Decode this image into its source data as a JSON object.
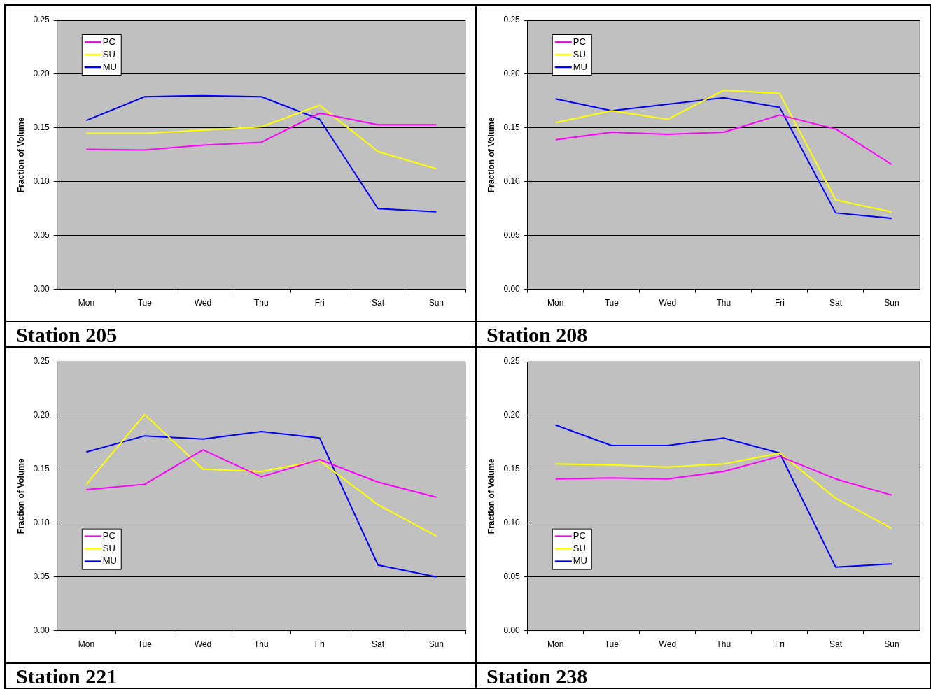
{
  "chart_data": [
    {
      "type": "line",
      "title": "Station 205",
      "ylabel": "Fraction of Volume",
      "categories": [
        "Mon",
        "Tue",
        "Wed",
        "Thu",
        "Fri",
        "Sat",
        "Sun"
      ],
      "ylim": [
        0,
        0.25
      ],
      "yticks": [
        {
          "value": 0,
          "label": "0.00"
        },
        {
          "value": 0.05,
          "label": "0.05"
        },
        {
          "value": 0.1,
          "label": "0.10"
        },
        {
          "value": 0.15,
          "label": "0.15"
        },
        {
          "value": 0.2,
          "label": "0.20"
        },
        {
          "value": 0.25,
          "label": "0.25"
        }
      ],
      "grid": "y",
      "legend": "top left",
      "marker": "none",
      "line_style": "solid",
      "series": [
        {
          "name": "PC",
          "color": "#ff00ff",
          "values": [
            0.13,
            0.1295,
            0.134,
            0.1366,
            0.1637,
            0.153,
            0.153
          ]
        },
        {
          "name": "SU",
          "color": "#ffff00",
          "values": [
            0.145,
            0.145,
            0.148,
            0.151,
            0.171,
            0.128,
            0.112
          ]
        },
        {
          "name": "MU",
          "color": "#0000ff",
          "values": [
            0.157,
            0.179,
            0.18,
            0.179,
            0.158,
            0.075,
            0.072
          ]
        }
      ]
    },
    {
      "type": "line",
      "title": "Station 208",
      "ylabel": "Fraction of Volume",
      "categories": [
        "Mon",
        "Tue",
        "Wed",
        "Thu",
        "Fri",
        "Sat",
        "Sun"
      ],
      "ylim": [
        0,
        0.25
      ],
      "yticks": [
        {
          "value": 0,
          "label": "0.00"
        },
        {
          "value": 0.05,
          "label": "0.05"
        },
        {
          "value": 0.1,
          "label": "0.10"
        },
        {
          "value": 0.15,
          "label": "0.15"
        },
        {
          "value": 0.2,
          "label": "0.20"
        },
        {
          "value": 0.25,
          "label": "0.25"
        }
      ],
      "grid": "y",
      "legend": "top left",
      "marker": "none",
      "line_style": "solid",
      "series": [
        {
          "name": "PC",
          "color": "#ff00ff",
          "values": [
            0.139,
            0.146,
            0.144,
            0.146,
            0.162,
            0.149,
            0.116
          ]
        },
        {
          "name": "SU",
          "color": "#ffff00",
          "values": [
            0.155,
            0.166,
            0.158,
            0.185,
            0.182,
            0.083,
            0.072
          ]
        },
        {
          "name": "MU",
          "color": "#0000ff",
          "values": [
            0.177,
            0.166,
            0.172,
            0.178,
            0.169,
            0.071,
            0.066
          ]
        }
      ]
    },
    {
      "type": "line",
      "title": "Station 221",
      "ylabel": "Fraction of Volume",
      "categories": [
        "Mon",
        "Tue",
        "Wed",
        "Thu",
        "Fri",
        "Sat",
        "Sun"
      ],
      "ylim": [
        0,
        0.25
      ],
      "yticks": [
        {
          "value": 0,
          "label": "0.00"
        },
        {
          "value": 0.05,
          "label": "0.05"
        },
        {
          "value": 0.1,
          "label": "0.10"
        },
        {
          "value": 0.15,
          "label": "0.15"
        },
        {
          "value": 0.2,
          "label": "0.20"
        },
        {
          "value": 0.25,
          "label": "0.25"
        }
      ],
      "grid": "y",
      "legend": "bottom left",
      "marker": "none",
      "line_style": "solid",
      "series": [
        {
          "name": "PC",
          "color": "#ff00ff",
          "values": [
            0.131,
            0.136,
            0.168,
            0.143,
            0.159,
            0.138,
            0.124
          ]
        },
        {
          "name": "SU",
          "color": "#ffff00",
          "values": [
            0.136,
            0.201,
            0.15,
            0.148,
            0.158,
            0.117,
            0.088
          ]
        },
        {
          "name": "MU",
          "color": "#0000ff",
          "values": [
            0.166,
            0.181,
            0.178,
            0.185,
            0.179,
            0.061,
            0.05
          ]
        }
      ]
    },
    {
      "type": "line",
      "title": "Station 238",
      "ylabel": "Fraction of Volume",
      "categories": [
        "Mon",
        "Tue",
        "Wed",
        "Thu",
        "Fri",
        "Sat",
        "Sun"
      ],
      "ylim": [
        0,
        0.25
      ],
      "yticks": [
        {
          "value": 0,
          "label": "0.00"
        },
        {
          "value": 0.05,
          "label": "0.05"
        },
        {
          "value": 0.1,
          "label": "0.10"
        },
        {
          "value": 0.15,
          "label": "0.15"
        },
        {
          "value": 0.2,
          "label": "0.20"
        },
        {
          "value": 0.25,
          "label": "0.25"
        }
      ],
      "grid": "y",
      "legend": "bottom left",
      "marker": "none",
      "line_style": "solid",
      "series": [
        {
          "name": "PC",
          "color": "#ff00ff",
          "values": [
            0.141,
            0.142,
            0.141,
            0.148,
            0.162,
            0.141,
            0.126
          ]
        },
        {
          "name": "SU",
          "color": "#ffff00",
          "values": [
            0.155,
            0.154,
            0.152,
            0.155,
            0.165,
            0.123,
            0.095
          ]
        },
        {
          "name": "MU",
          "color": "#0000ff",
          "values": [
            0.191,
            0.172,
            0.172,
            0.179,
            0.165,
            0.059,
            0.062
          ]
        }
      ]
    }
  ]
}
